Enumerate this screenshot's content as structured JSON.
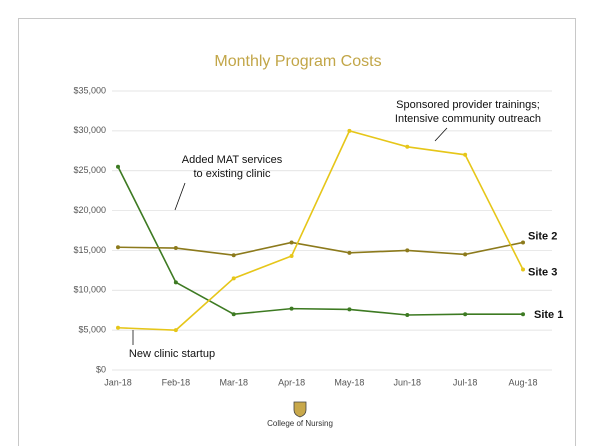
{
  "chart_data": {
    "type": "line",
    "title": "Monthly Program Costs",
    "categories": [
      "Jan-18",
      "Feb-18",
      "Mar-18",
      "Apr-18",
      "May-18",
      "Jun-18",
      "Jul-18",
      "Aug-18"
    ],
    "series": [
      {
        "name": "Site 1",
        "color": "#3d7a22",
        "values": [
          25500,
          11000,
          7000,
          7700,
          7600,
          6900,
          7000,
          7000
        ]
      },
      {
        "name": "Site 2",
        "color": "#8c7a1c",
        "values": [
          15400,
          15300,
          14400,
          16000,
          14700,
          15000,
          14500,
          16000
        ]
      },
      {
        "name": "Site 3",
        "color": "#e6c619",
        "values": [
          5300,
          5000,
          11500,
          14300,
          30000,
          28000,
          27000,
          12600
        ]
      }
    ],
    "ylim": [
      0,
      35000
    ],
    "yticks": [
      {
        "value": 0,
        "label": "$0"
      },
      {
        "value": 5000,
        "label": "$5,000"
      },
      {
        "value": 10000,
        "label": "$10,000"
      },
      {
        "value": 15000,
        "label": "$15,000"
      },
      {
        "value": 20000,
        "label": "$20,000"
      },
      {
        "value": 25000,
        "label": "$25,000"
      },
      {
        "value": 30000,
        "label": "$30,000"
      },
      {
        "value": 35000,
        "label": "$35,000"
      }
    ],
    "grid": true,
    "annotations": [
      {
        "lines": [
          "Added MAT services",
          "to existing clinic"
        ]
      },
      {
        "lines": [
          "Sponsored provider trainings;",
          "Intensive community outreach"
        ]
      },
      {
        "lines": [
          "New clinic startup"
        ]
      }
    ]
  },
  "footer": {
    "text": "College of Nursing"
  }
}
